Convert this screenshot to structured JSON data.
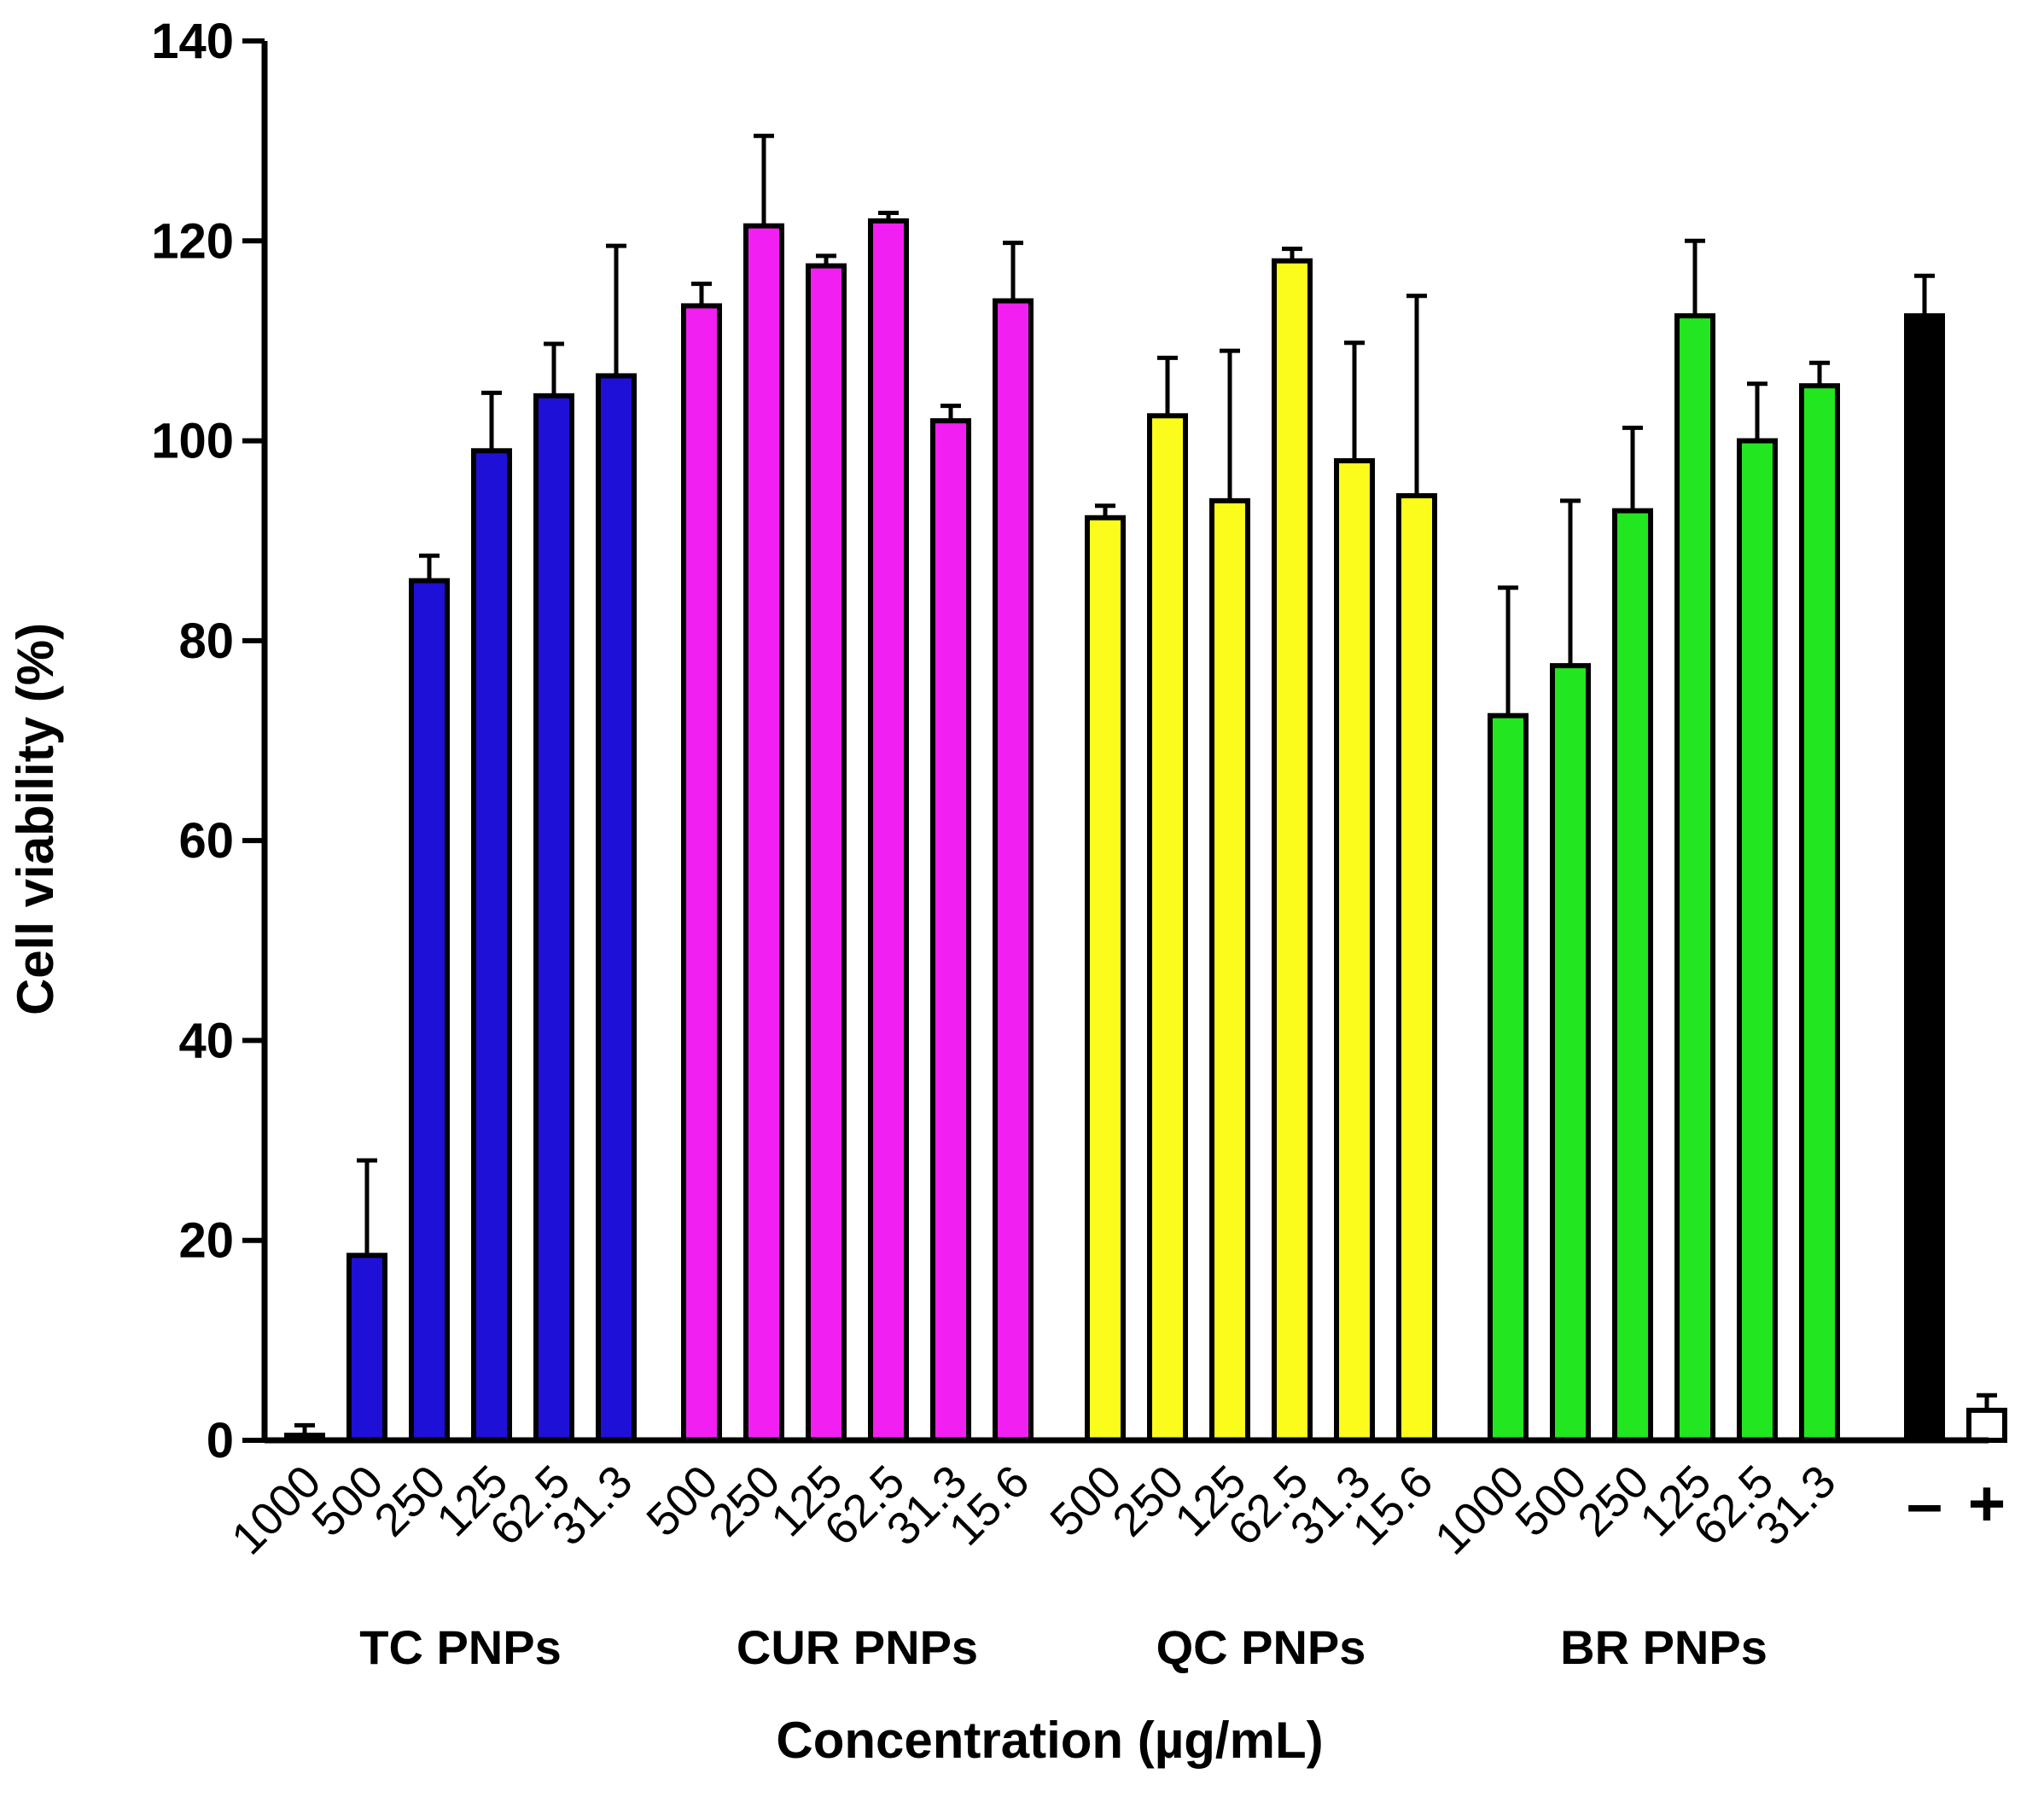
{
  "chart_data": {
    "type": "bar",
    "ylabel": "Cell viability (%)",
    "xlabel": "Concentration (µg/mL)",
    "ylim": [
      0,
      140
    ],
    "yticks": [
      0,
      20,
      40,
      60,
      80,
      100,
      120,
      140
    ],
    "groups": [
      {
        "name": "TC PNPs",
        "color": "#1f10d8",
        "categories": [
          "1000",
          "500",
          "250",
          "125",
          "62.5",
          "31.3"
        ],
        "values": [
          0.5,
          18.5,
          86,
          99,
          104.5,
          106.5
        ],
        "errors": [
          1,
          9.5,
          2.5,
          5.8,
          5.2,
          13
        ]
      },
      {
        "name": "CUR PNPs",
        "color": "#f21ff2",
        "categories": [
          "500",
          "250",
          "125",
          "62.5",
          "31.3",
          "15.6"
        ],
        "values": [
          113.5,
          121.5,
          117.5,
          122,
          102,
          114
        ],
        "errors": [
          2.2,
          9,
          1,
          0.8,
          1.5,
          5.8
        ]
      },
      {
        "name": "QC PNPs",
        "color": "#fbfb1c",
        "categories": [
          "500",
          "250",
          "125",
          "62.5",
          "31.3",
          "15.6"
        ],
        "values": [
          92.3,
          102.5,
          94,
          118,
          98,
          94.5
        ],
        "errors": [
          1.2,
          5.8,
          15,
          1.2,
          11.8,
          20
        ]
      },
      {
        "name": "BR PNPs",
        "color": "#22e61f",
        "categories": [
          "1000",
          "500",
          "250",
          "125",
          "62.5",
          "31.3"
        ],
        "values": [
          72.5,
          77.5,
          93,
          112.5,
          100,
          105.5
        ],
        "errors": [
          12.8,
          16.5,
          8.3,
          7.5,
          5.7,
          2.3
        ]
      }
    ],
    "controls": [
      {
        "label": "–",
        "value": 112.5,
        "error": 4,
        "color": "#000000"
      },
      {
        "label": "+",
        "value": 3,
        "error": 1.5,
        "color": "#ffffff"
      }
    ]
  }
}
